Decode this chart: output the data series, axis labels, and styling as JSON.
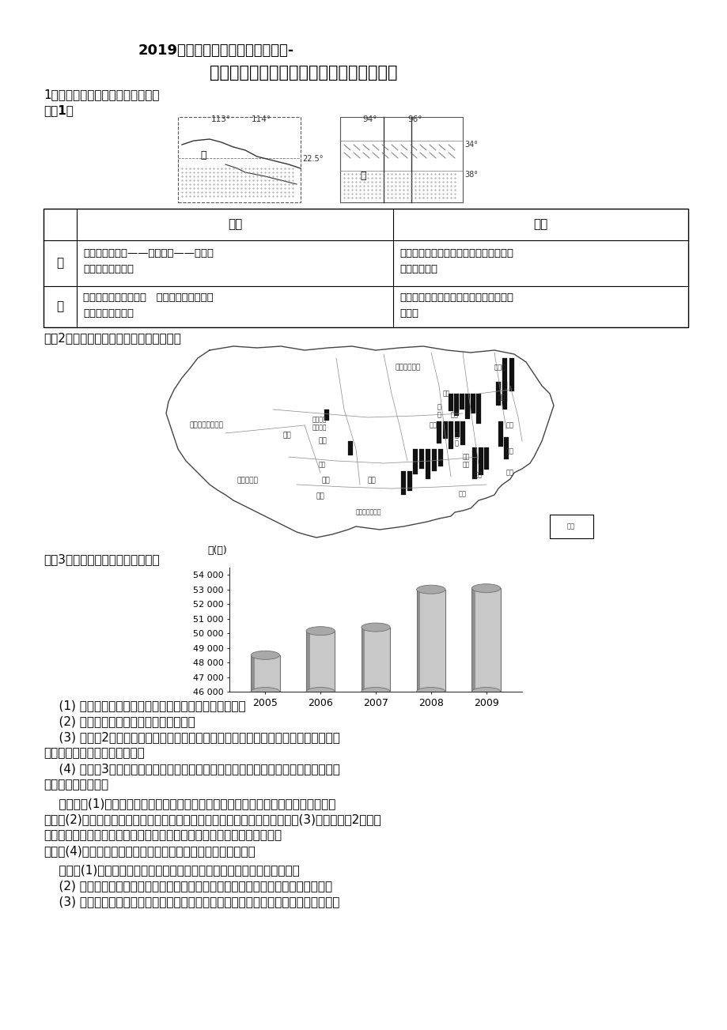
{
  "title_line1": "2019高考地理二轮练习提能力操练-",
  "title_line2": "第十章交通运输布局及其影响板块命题直击",
  "question_header": "1、阅读下面材料，回答以下问题。",
  "material1": "材料1：",
  "material2_label": "材料2：我国国家粮食储备库数量散布图。",
  "material3_label": "材料3：我国粮食产量增长示意图。",
  "chart_ylabel": "万(吨)",
  "chart_years": [
    "2005",
    "2006",
    "2007",
    "2008",
    "2009"
  ],
  "chart_values": [
    48500,
    50160,
    50410,
    53000,
    53082
  ],
  "chart_yticks": [
    46000,
    47000,
    48000,
    49000,
    50000,
    51000,
    52000,
    53000,
    54000
  ],
  "bg_color": "#ffffff",
  "text_color": "#000000",
  "body_fontsize": 11
}
